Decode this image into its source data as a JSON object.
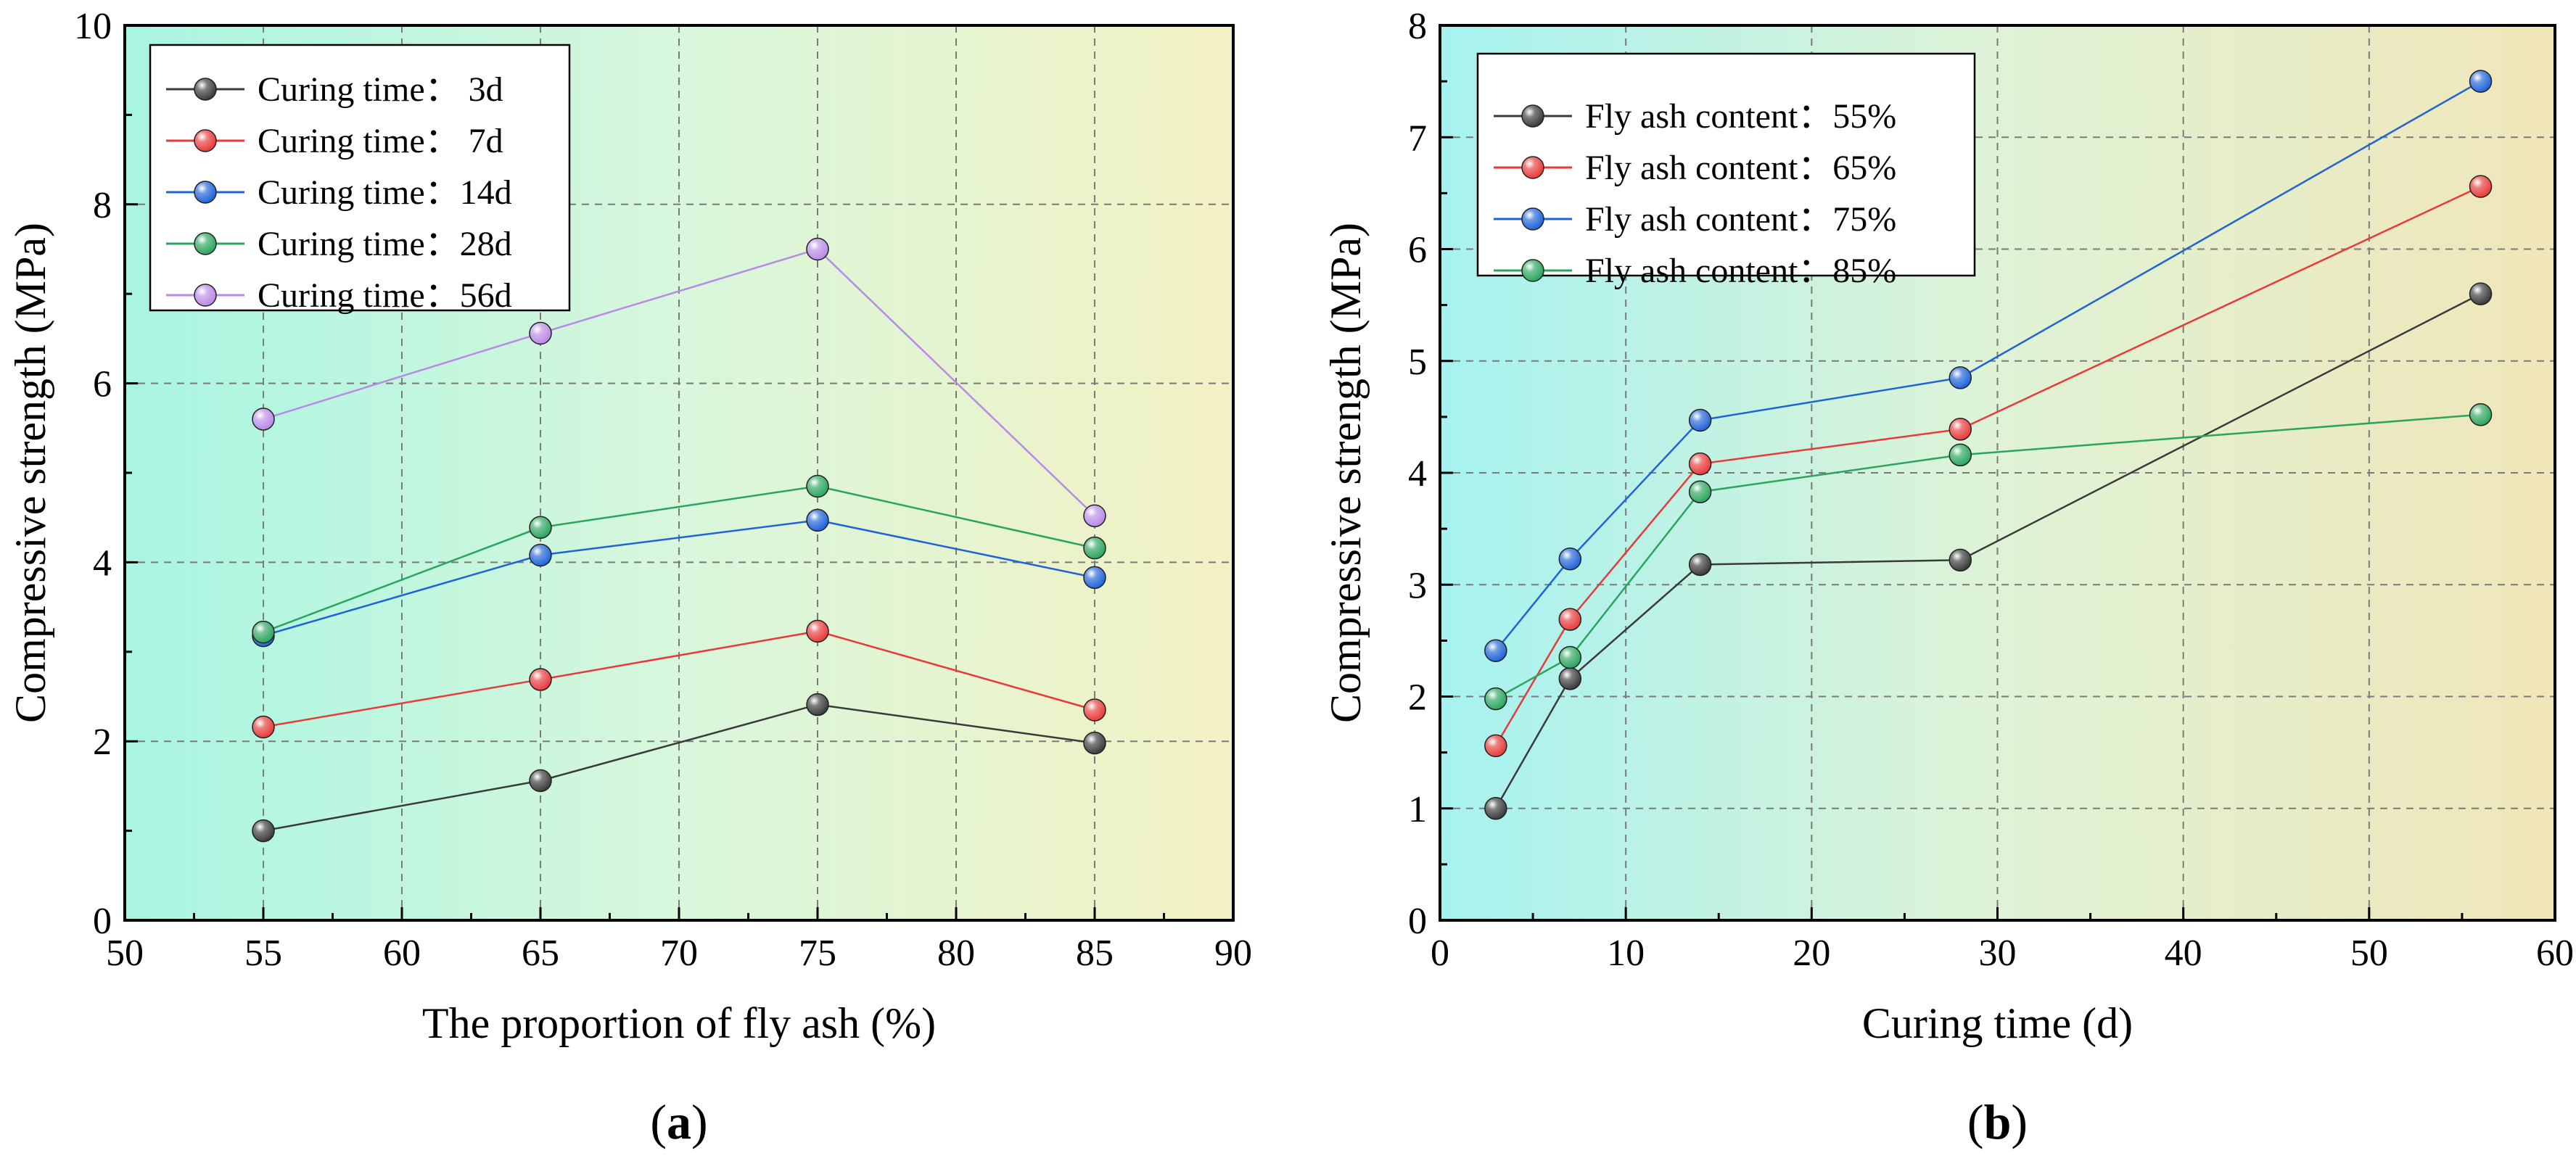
{
  "chart_data": [
    {
      "type": "line",
      "panel_label": "a",
      "xlabel": "The proportion of fly ash (%)",
      "ylabel": "Compressive strength (MPa)",
      "xlim": [
        50,
        90
      ],
      "ylim": [
        0,
        10
      ],
      "xticks": [
        50,
        55,
        60,
        65,
        70,
        75,
        80,
        85,
        90
      ],
      "yticks": [
        0,
        2,
        4,
        6,
        8,
        10
      ],
      "grid": true,
      "legend_position": "top-left",
      "background_gradient": [
        "#a8f5e2",
        "#d8f7dc",
        "#f3f1c3"
      ],
      "x": [
        55,
        65,
        75,
        85
      ],
      "series": [
        {
          "name": "Curing time： 3d",
          "color": "#3a3a3a",
          "values": [
            1.0,
            1.56,
            2.41,
            1.98
          ]
        },
        {
          "name": "Curing time： 7d",
          "color": "#e83a3a",
          "values": [
            2.16,
            2.69,
            3.23,
            2.35
          ]
        },
        {
          "name": "Curing time：14d",
          "color": "#1f63d8",
          "values": [
            3.18,
            4.08,
            4.47,
            3.83
          ]
        },
        {
          "name": "Curing time：28d",
          "color": "#2aa55d",
          "values": [
            3.22,
            4.39,
            4.85,
            4.16
          ]
        },
        {
          "name": "Curing time：56d",
          "color": "#b98ae6",
          "values": [
            5.6,
            6.56,
            7.5,
            4.52
          ]
        }
      ]
    },
    {
      "type": "line",
      "panel_label": "b",
      "xlabel": "Curing time (d)",
      "ylabel": "Compressive strength (MPa)",
      "xlim": [
        0,
        60
      ],
      "ylim": [
        0,
        8
      ],
      "xticks": [
        0,
        10,
        20,
        30,
        40,
        50,
        60
      ],
      "yticks": [
        0,
        1,
        2,
        3,
        4,
        5,
        6,
        7,
        8
      ],
      "grid": true,
      "legend_position": "top-left",
      "background_gradient": [
        "#a6f2f0",
        "#dff3d6",
        "#f0e6b8"
      ],
      "x": [
        3,
        7,
        14,
        28,
        56
      ],
      "series": [
        {
          "name": "Fly ash content：55%",
          "color": "#3a3a3a",
          "values": [
            1.0,
            2.16,
            3.18,
            3.22,
            5.6
          ]
        },
        {
          "name": "Fly ash content：65%",
          "color": "#e83a3a",
          "values": [
            1.56,
            2.69,
            4.08,
            4.39,
            6.56
          ]
        },
        {
          "name": "Fly ash content：75%",
          "color": "#1f63d8",
          "values": [
            2.41,
            3.23,
            4.47,
            4.85,
            7.5
          ]
        },
        {
          "name": "Fly ash content：85%",
          "color": "#2aa55d",
          "values": [
            1.98,
            2.35,
            3.83,
            4.16,
            4.52
          ]
        }
      ]
    }
  ]
}
